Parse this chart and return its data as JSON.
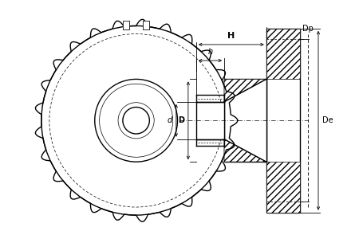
{
  "bg_color": "#ffffff",
  "line_color": "#000000",
  "fig_width": 4.5,
  "fig_height": 2.9,
  "dpi": 100,
  "labels": {
    "H": "H",
    "h": "h",
    "d": "d",
    "D": "D",
    "Dp": "Dp",
    "De": "De"
  }
}
